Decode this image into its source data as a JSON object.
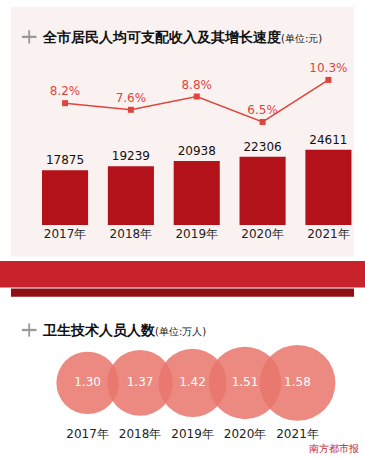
{
  "chart_data": [
    {
      "type": "bar",
      "title": "全市居民人均可支配收入及其增长速度",
      "unit": "(单位:元)",
      "categories": [
        "2017年",
        "2018年",
        "2019年",
        "2020年",
        "2021年"
      ],
      "series": [
        {
          "type": "bar",
          "color": "#b3121a",
          "values": [
            17875,
            19239,
            20938,
            22306,
            24611
          ]
        },
        {
          "type": "line",
          "axis": "y2",
          "color": "#e0443c",
          "marker": "square",
          "line_style": "solid",
          "values": [
            8.2,
            7.6,
            8.8,
            6.5,
            10.3
          ],
          "value_labels": [
            "8.2%",
            "7.6%",
            "8.8%",
            "6.5%",
            "10.3%"
          ]
        }
      ],
      "ylim": [
        0,
        54000
      ],
      "y2lim": [
        -2.8,
        12.1
      ],
      "data_labels": true,
      "tick_labels": "x",
      "grid": false
    },
    {
      "type": "bubble",
      "title": "卫生技术人员人数",
      "unit": "(单位:万人)",
      "categories": [
        "2017年",
        "2018年",
        "2019年",
        "2020年",
        "2021年"
      ],
      "values": [
        1.3,
        1.37,
        1.42,
        1.51,
        1.58
      ],
      "value_labels": [
        "1.30",
        "1.37",
        "1.42",
        "1.51",
        "1.58"
      ],
      "color": "#e9756c",
      "marker": "circle",
      "data_labels": true,
      "tick_labels": "x",
      "grid": false
    }
  ],
  "source": "南方都市报"
}
